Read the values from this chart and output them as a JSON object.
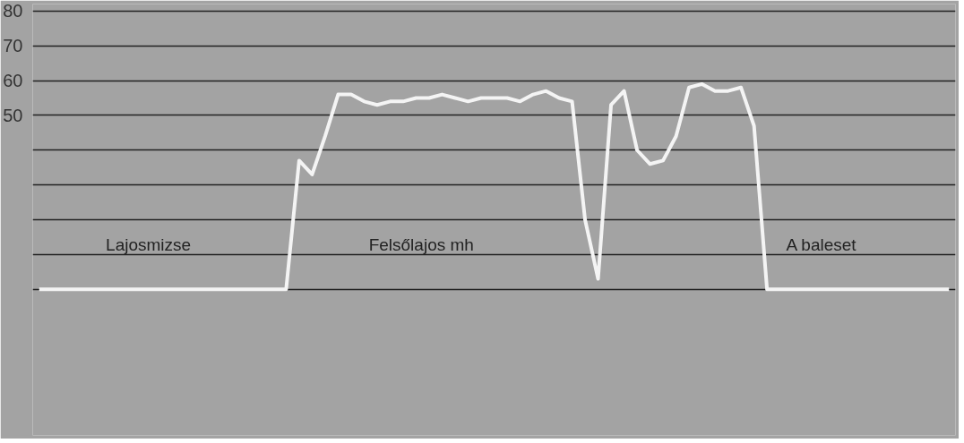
{
  "chart_data": {
    "type": "line",
    "categories": [
      null,
      null,
      null,
      null,
      null,
      null,
      null,
      null,
      null,
      null,
      null,
      null,
      null,
      null,
      null,
      null,
      null,
      null,
      null,
      null,
      null,
      null,
      null,
      null,
      null,
      null,
      null,
      null,
      null,
      null,
      null,
      null,
      null,
      null,
      null,
      null,
      null,
      null,
      null,
      null,
      null,
      null,
      null,
      null,
      null,
      null,
      null,
      null,
      null,
      null,
      null,
      null,
      null,
      null,
      null,
      null,
      null,
      null,
      null,
      null,
      null,
      null,
      null,
      null,
      null,
      null,
      null,
      null,
      null,
      null,
      null
    ],
    "series": [
      {
        "color": "#f4f4f4",
        "values": [
          0,
          0,
          0,
          0,
          0,
          0,
          0,
          0,
          0,
          0,
          0,
          0,
          0,
          0,
          0,
          0,
          0,
          0,
          0,
          0,
          37,
          33,
          44,
          56,
          56,
          54,
          53,
          54,
          54,
          55,
          55,
          56,
          55,
          54,
          55,
          55,
          55,
          54,
          56,
          57,
          55,
          54,
          20,
          3,
          53,
          57,
          40,
          36,
          37,
          44,
          58,
          59,
          57,
          57,
          58,
          47,
          0,
          0,
          0,
          0,
          0,
          0,
          0,
          0,
          0,
          0,
          0,
          0,
          0,
          0,
          0
        ]
      }
    ],
    "ylim": [
      -42,
      82
    ],
    "yticks": [
      {
        "value": 0,
        "label": null
      },
      {
        "value": 10,
        "label": null
      },
      {
        "value": 20,
        "label": null
      },
      {
        "value": 30,
        "label": null
      },
      {
        "value": 40,
        "label": null
      },
      50,
      60,
      70,
      80
    ],
    "grid": "y",
    "tick_labels": "y",
    "line_style": "solid",
    "annotations": [
      "Lajosmizse",
      "Felsőlajos mh",
      "A baleset"
    ]
  }
}
